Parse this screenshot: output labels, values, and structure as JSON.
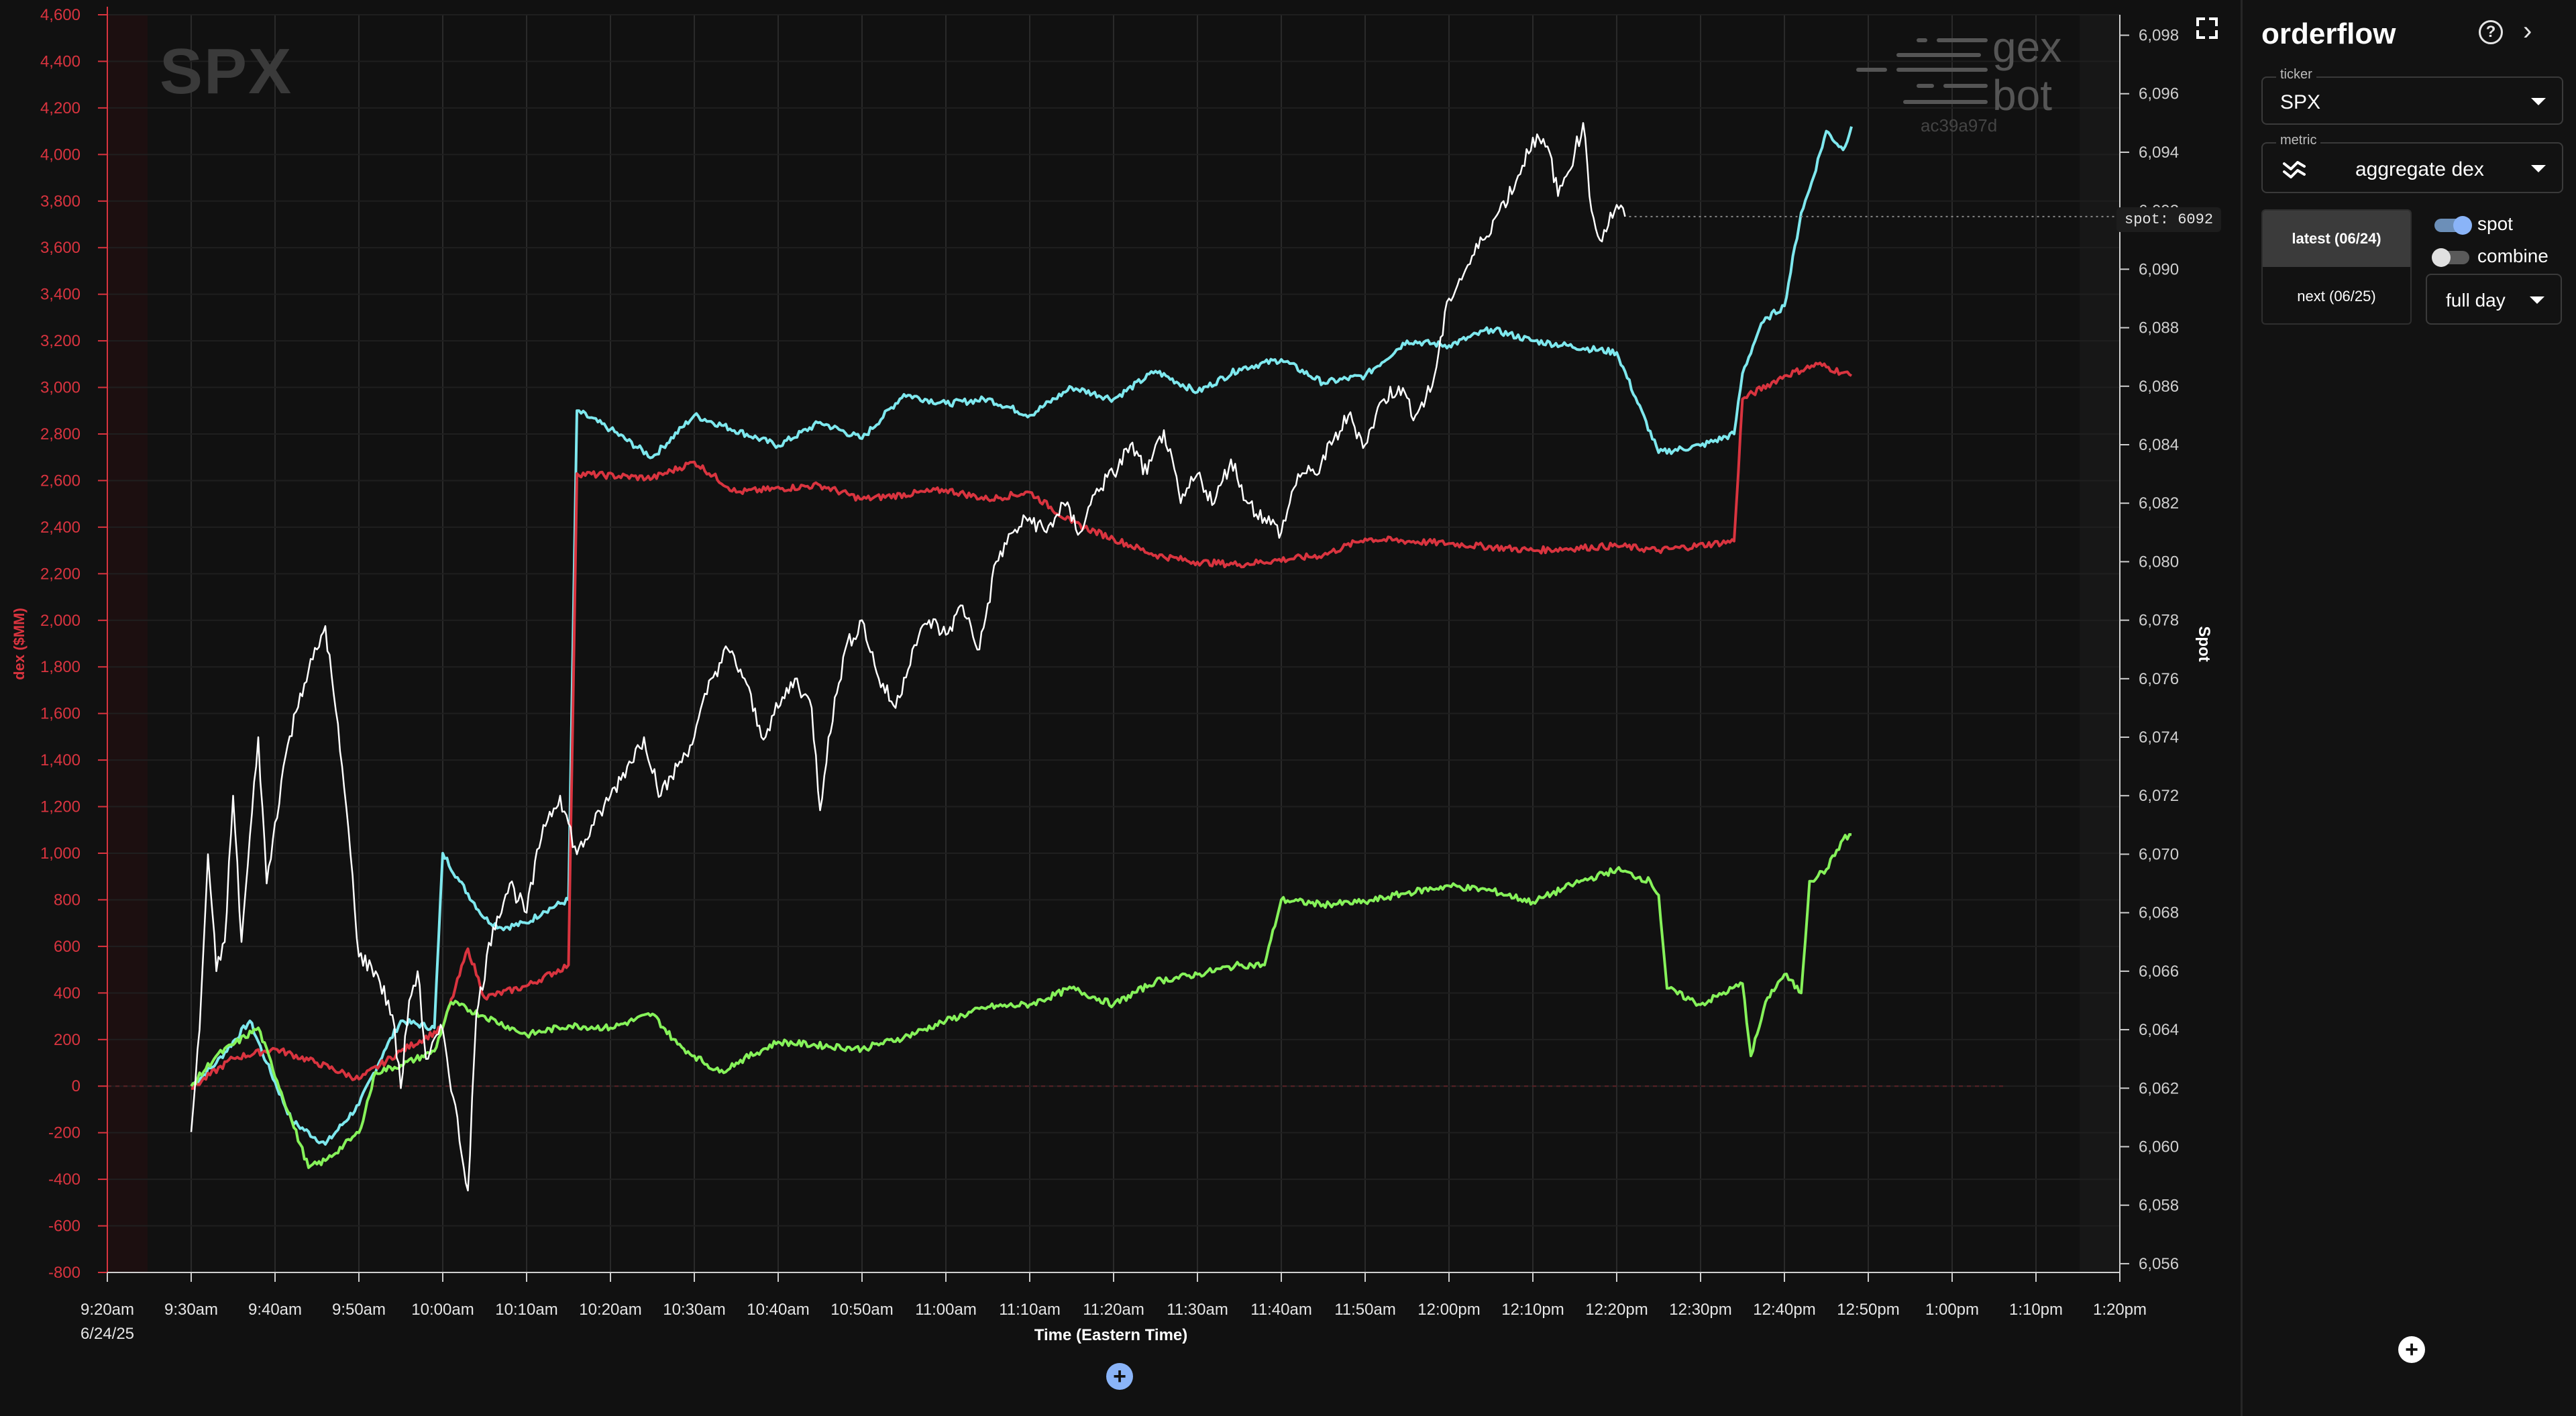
{
  "chart": {
    "watermark_ticker": "SPX",
    "logo_line1": "gex",
    "logo_line2": "bot",
    "build_hash": "ac39a97d",
    "spot_tag": "spot: 6092"
  },
  "add_button_label": "+",
  "panel": {
    "title": "orderflow",
    "help_icon": "help-icon",
    "collapse_icon": "chevron-right-icon",
    "ticker": {
      "label": "ticker",
      "value": "SPX"
    },
    "metric": {
      "label": "metric",
      "value": "aggregate dex",
      "icon": "trend-icon"
    },
    "expirations": [
      "latest (06/24)",
      "next (06/25)"
    ],
    "toggles": [
      {
        "label": "spot",
        "on": true
      },
      {
        "label": "combine",
        "on": false
      }
    ],
    "range": "full day"
  },
  "chart_data": {
    "type": "line",
    "xlabel": "Time (Eastern Time)",
    "ylabel": "dex ($MM)",
    "y2label": "Spot",
    "x_ticks": [
      "9:20am",
      "9:30am",
      "9:40am",
      "9:50am",
      "10:00am",
      "10:10am",
      "10:20am",
      "10:30am",
      "10:40am",
      "10:50am",
      "11:00am",
      "11:10am",
      "11:20am",
      "11:30am",
      "11:40am",
      "11:50am",
      "12:00pm",
      "12:10pm",
      "12:20pm",
      "12:30pm",
      "12:40pm",
      "12:50pm",
      "1:00pm",
      "1:10pm",
      "1:20pm"
    ],
    "x_date_label": "6/24/25",
    "ylim": [
      -800,
      4600
    ],
    "y_ticks": [
      "-800",
      "-600",
      "-400",
      "-200",
      "0",
      "200",
      "400",
      "600",
      "800",
      "1,000",
      "1,200",
      "1,400",
      "1,600",
      "1,800",
      "2,000",
      "2,200",
      "2,400",
      "2,600",
      "2,800",
      "3,000",
      "3,200",
      "3,400",
      "3,600",
      "3,800",
      "4,000",
      "4,200",
      "4,400",
      "4,600"
    ],
    "y2lim": [
      6055.7,
      6098.7
    ],
    "y2_ticks": [
      "6,056",
      "6,058",
      "6,060",
      "6,062",
      "6,064",
      "6,066",
      "6,068",
      "6,070",
      "6,072",
      "6,074",
      "6,076",
      "6,078",
      "6,080",
      "6,082",
      "6,084",
      "6,086",
      "6,088",
      "6,090",
      "6,092",
      "6,094",
      "6,096",
      "6,098"
    ],
    "grid": true,
    "series": [
      {
        "color": "#7ee8ee",
        "axis": "left",
        "values": [
          [
            0,
            0
          ],
          [
            3,
            100
          ],
          [
            7,
            280
          ],
          [
            9,
            100
          ],
          [
            12,
            -150
          ],
          [
            16,
            -250
          ],
          [
            20,
            -80
          ],
          [
            23,
            150
          ],
          [
            25,
            280
          ],
          [
            29,
            250
          ],
          [
            30,
            1000
          ],
          [
            32,
            880
          ],
          [
            35,
            720
          ],
          [
            37,
            680
          ],
          [
            40,
            700
          ],
          [
            42,
            750
          ],
          [
            45,
            800
          ],
          [
            46,
            2900
          ],
          [
            50,
            2820
          ],
          [
            55,
            2700
          ],
          [
            60,
            2880
          ],
          [
            70,
            2750
          ],
          [
            75,
            2850
          ],
          [
            80,
            2780
          ],
          [
            85,
            2970
          ],
          [
            90,
            2930
          ],
          [
            95,
            2950
          ],
          [
            100,
            2880
          ],
          [
            105,
            3000
          ],
          [
            110,
            2950
          ],
          [
            115,
            3070
          ],
          [
            120,
            2980
          ],
          [
            125,
            3080
          ],
          [
            130,
            3120
          ],
          [
            135,
            3020
          ],
          [
            140,
            3050
          ],
          [
            145,
            3200
          ],
          [
            150,
            3180
          ],
          [
            155,
            3250
          ],
          [
            160,
            3200
          ],
          [
            170,
            3150
          ],
          [
            175,
            2720
          ],
          [
            180,
            2750
          ],
          [
            184,
            2800
          ],
          [
            185,
            3060
          ],
          [
            187,
            3250
          ],
          [
            188,
            3300
          ],
          [
            190,
            3350
          ],
          [
            192,
            3750
          ],
          [
            193,
            3850
          ],
          [
            195,
            4100
          ],
          [
            197,
            4020
          ],
          [
            198,
            4120
          ]
        ]
      },
      {
        "color": "#d9343f",
        "axis": "left",
        "values": [
          [
            0,
            -10
          ],
          [
            5,
            120
          ],
          [
            10,
            160
          ],
          [
            15,
            100
          ],
          [
            20,
            30
          ],
          [
            25,
            150
          ],
          [
            30,
            250
          ],
          [
            33,
            590
          ],
          [
            35,
            380
          ],
          [
            40,
            430
          ],
          [
            45,
            520
          ],
          [
            46,
            2630
          ],
          [
            55,
            2610
          ],
          [
            60,
            2680
          ],
          [
            65,
            2550
          ],
          [
            75,
            2580
          ],
          [
            80,
            2520
          ],
          [
            90,
            2560
          ],
          [
            95,
            2520
          ],
          [
            100,
            2550
          ],
          [
            105,
            2420
          ],
          [
            110,
            2350
          ],
          [
            115,
            2280
          ],
          [
            120,
            2250
          ],
          [
            125,
            2240
          ],
          [
            135,
            2280
          ],
          [
            140,
            2350
          ],
          [
            150,
            2330
          ],
          [
            160,
            2300
          ],
          [
            170,
            2320
          ],
          [
            175,
            2300
          ],
          [
            184,
            2340
          ],
          [
            185,
            2950
          ],
          [
            190,
            3050
          ],
          [
            194,
            3100
          ],
          [
            198,
            3050
          ]
        ]
      },
      {
        "color": "#86f25a",
        "axis": "left",
        "values": [
          [
            0,
            0
          ],
          [
            3,
            130
          ],
          [
            8,
            250
          ],
          [
            12,
            -150
          ],
          [
            14,
            -350
          ],
          [
            16,
            -320
          ],
          [
            20,
            -200
          ],
          [
            22,
            60
          ],
          [
            25,
            90
          ],
          [
            29,
            150
          ],
          [
            31,
            360
          ],
          [
            35,
            300
          ],
          [
            40,
            220
          ],
          [
            45,
            260
          ],
          [
            50,
            250
          ],
          [
            55,
            310
          ],
          [
            58,
            180
          ],
          [
            60,
            130
          ],
          [
            63,
            60
          ],
          [
            65,
            100
          ],
          [
            70,
            190
          ],
          [
            80,
            160
          ],
          [
            85,
            210
          ],
          [
            90,
            280
          ],
          [
            95,
            340
          ],
          [
            100,
            350
          ],
          [
            105,
            420
          ],
          [
            110,
            350
          ],
          [
            115,
            450
          ],
          [
            120,
            480
          ],
          [
            125,
            520
          ],
          [
            128,
            520
          ],
          [
            130,
            800
          ],
          [
            135,
            780
          ],
          [
            140,
            790
          ],
          [
            145,
            830
          ],
          [
            150,
            860
          ],
          [
            155,
            840
          ],
          [
            160,
            790
          ],
          [
            165,
            870
          ],
          [
            170,
            930
          ],
          [
            174,
            880
          ],
          [
            175,
            820
          ],
          [
            176,
            420
          ],
          [
            180,
            350
          ],
          [
            185,
            440
          ],
          [
            186,
            130
          ],
          [
            188,
            380
          ],
          [
            190,
            480
          ],
          [
            192,
            400
          ],
          [
            193,
            880
          ],
          [
            195,
            930
          ],
          [
            197,
            1060
          ],
          [
            198,
            1080
          ]
        ]
      },
      {
        "color": "#ffffff",
        "axis": "right",
        "values": [
          [
            0,
            6060.5
          ],
          [
            1,
            6064
          ],
          [
            2,
            6070
          ],
          [
            3,
            6066
          ],
          [
            4,
            6067
          ],
          [
            5,
            6072
          ],
          [
            6,
            6067
          ],
          [
            8,
            6074
          ],
          [
            9,
            6069
          ],
          [
            11,
            6073
          ],
          [
            13,
            6075.5
          ],
          [
            15,
            6077
          ],
          [
            16,
            6077.8
          ],
          [
            18,
            6073
          ],
          [
            19,
            6070
          ],
          [
            20,
            6066.5
          ],
          [
            22,
            6066
          ],
          [
            24,
            6064.5
          ],
          [
            25,
            6062
          ],
          [
            26,
            6065
          ],
          [
            27,
            6066
          ],
          [
            28,
            6063
          ],
          [
            30,
            6064
          ],
          [
            33,
            6058.5
          ],
          [
            34,
            6064.5
          ],
          [
            36,
            6067.5
          ],
          [
            38,
            6069
          ],
          [
            40,
            6068
          ],
          [
            42,
            6071
          ],
          [
            44,
            6072
          ],
          [
            46,
            6070
          ],
          [
            48,
            6071
          ],
          [
            50,
            6072
          ],
          [
            52,
            6073
          ],
          [
            54,
            6074
          ],
          [
            56,
            6072
          ],
          [
            58,
            6073
          ],
          [
            60,
            6074
          ],
          [
            62,
            6076
          ],
          [
            64,
            6077
          ],
          [
            66,
            6076
          ],
          [
            68,
            6074
          ],
          [
            70,
            6075
          ],
          [
            72,
            6076
          ],
          [
            74,
            6075
          ],
          [
            75,
            6071.5
          ],
          [
            76,
            6074
          ],
          [
            78,
            6077
          ],
          [
            80,
            6078
          ],
          [
            82,
            6076
          ],
          [
            84,
            6075
          ],
          [
            86,
            6077
          ],
          [
            88,
            6078
          ],
          [
            90,
            6077.5
          ],
          [
            92,
            6078.5
          ],
          [
            94,
            6077
          ],
          [
            96,
            6080
          ],
          [
            98,
            6081
          ],
          [
            100,
            6081.5
          ],
          [
            102,
            6081
          ],
          [
            104,
            6082
          ],
          [
            106,
            6081
          ],
          [
            108,
            6082.5
          ],
          [
            110,
            6083
          ],
          [
            112,
            6084
          ],
          [
            114,
            6083
          ],
          [
            116,
            6084.5
          ],
          [
            118,
            6082
          ],
          [
            120,
            6083
          ],
          [
            122,
            6082
          ],
          [
            124,
            6083.5
          ],
          [
            126,
            6082
          ],
          [
            128,
            6081.5
          ],
          [
            130,
            6081
          ],
          [
            132,
            6083
          ],
          [
            134,
            6083
          ],
          [
            136,
            6084
          ],
          [
            138,
            6085
          ],
          [
            140,
            6084
          ],
          [
            142,
            6085.5
          ],
          [
            144,
            6086
          ],
          [
            146,
            6085
          ],
          [
            148,
            6086
          ],
          [
            150,
            6089
          ],
          [
            152,
            6090
          ],
          [
            154,
            6091
          ],
          [
            156,
            6092
          ],
          [
            158,
            6093
          ],
          [
            160,
            6094.5
          ],
          [
            162,
            6094
          ],
          [
            163,
            6092.5
          ],
          [
            165,
            6094
          ],
          [
            166,
            6095
          ],
          [
            167,
            6092
          ],
          [
            168,
            6091
          ],
          [
            170,
            6092.2
          ],
          [
            171,
            6091.8
          ]
        ]
      }
    ]
  }
}
